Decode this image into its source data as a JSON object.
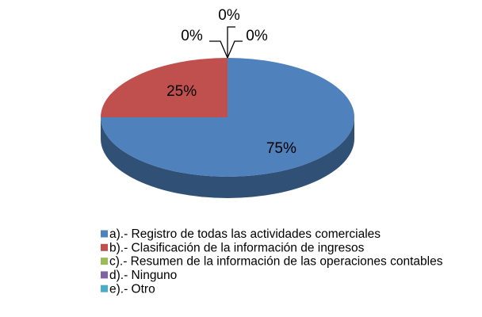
{
  "chart_data": {
    "type": "pie",
    "categories": [
      "a).- Registro de todas las actividades comerciales",
      "b).- Clasificación de la información de ingresos",
      "c).- Resumen de la información de las operaciones contables",
      "d).- Ninguno",
      "e).- Otro"
    ],
    "values": [
      75,
      25,
      0,
      0,
      0
    ],
    "value_labels": [
      "75%",
      "25%",
      "0%",
      "0%",
      "0%"
    ],
    "colors": [
      "#4f81bd",
      "#c0504d",
      "#9bbb59",
      "#8064a2",
      "#4bacc6"
    ],
    "legend": "bottom"
  }
}
